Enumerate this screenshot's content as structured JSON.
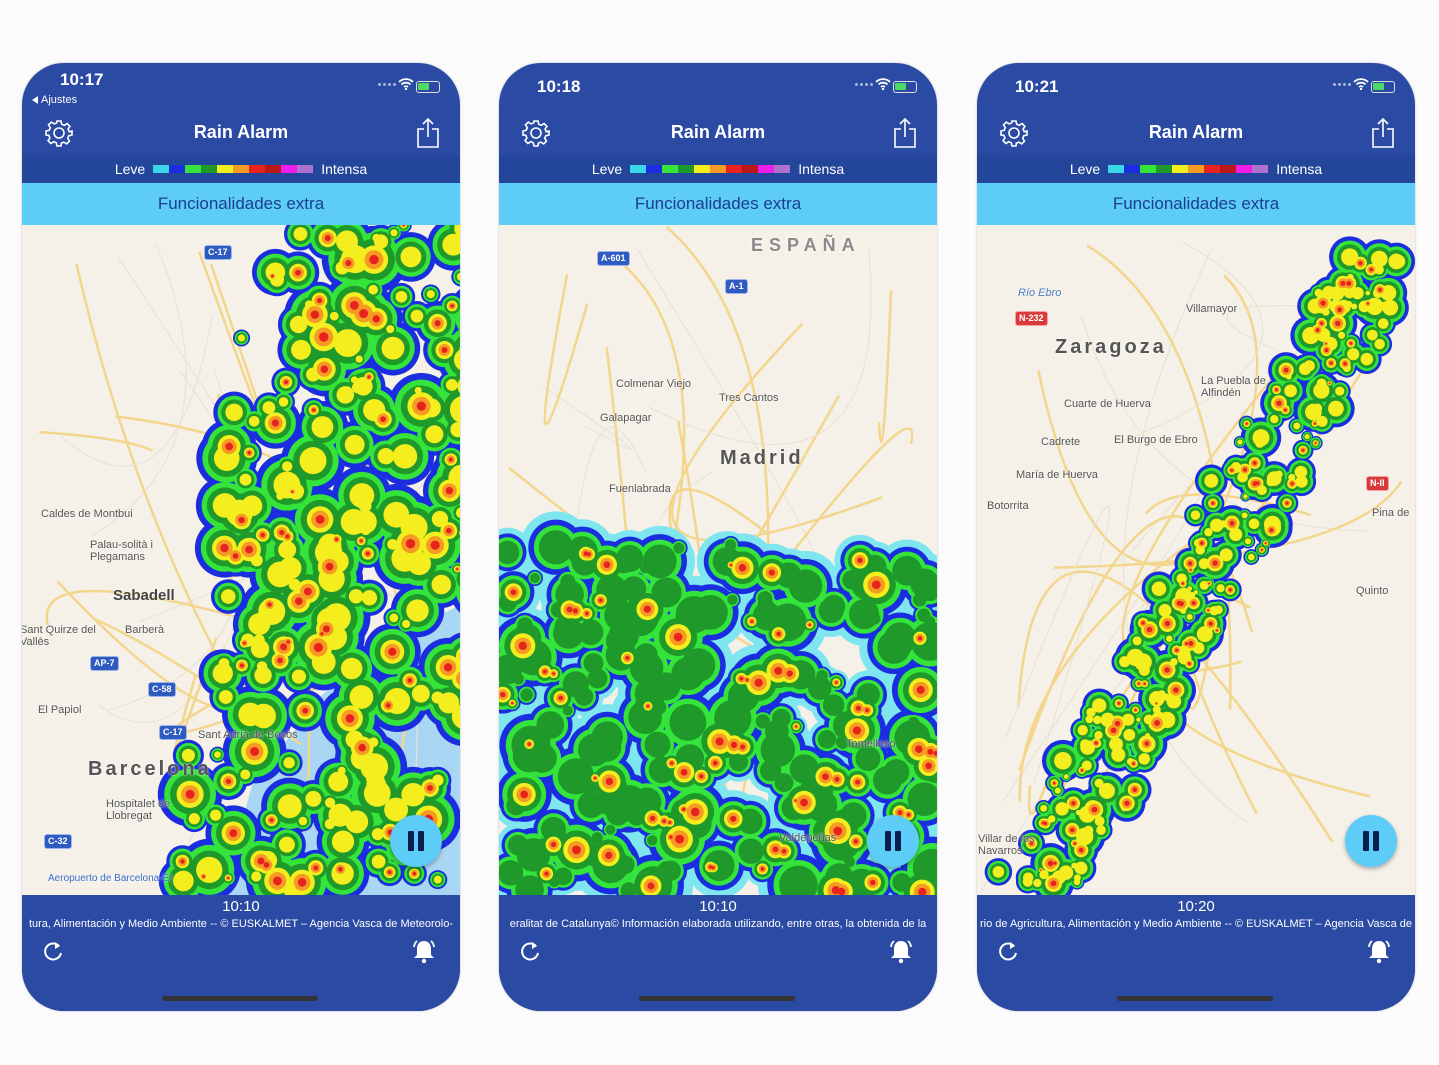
{
  "app": {
    "title": "Rain Alarm",
    "legend_light": "Leve",
    "legend_heavy": "Intensa",
    "banner": "Funcionalidades extra"
  },
  "legend_colors": [
    "#3ad7e8",
    "#1a2ee0",
    "#35e43a",
    "#1f9a2a",
    "#f5ee1f",
    "#f59a23",
    "#e8221e",
    "#b81818",
    "#ee1ee8",
    "#b070d0"
  ],
  "colors": {
    "header": "#2a4aa3",
    "banner": "#5dcdf7",
    "map_bg": "#f5f1e9"
  },
  "phones": [
    {
      "status_time": "10:17",
      "back_label": "Ajustes",
      "radar_time": "10:10",
      "attribution": "tura, Alimentación y Medio Ambiente -- © EUSKALMET – Agencia Vasca de Meteorolo-",
      "labels": [
        "Caldes de Montbui",
        "Palau-solità i Plegamans",
        "Sabadell",
        "Sant Quirze del Vallès",
        "Barberà",
        "El Papiol",
        "Barcelona",
        "Hospitalet de Llobregat",
        "Sant Adrià de Besòs",
        "Aeropuerto de Barcelona-El"
      ],
      "shields": [
        "C-17",
        "AP-7",
        "C-58",
        "C-17",
        "C-32"
      ]
    },
    {
      "status_time": "10:18",
      "radar_time": "10:10",
      "attribution": "eralitat de Catalunya© Información elaborada utilizando, entre otras, la obtenida de la",
      "labels": [
        "ESPAÑA",
        "Colmenar Viejo",
        "Tres Cantos",
        "Galapagar",
        "Madrid",
        "Fuenlabrada",
        "Tomelloso",
        "Valdepeñas"
      ],
      "shields": [
        "A-601",
        "A-1"
      ]
    },
    {
      "status_time": "10:21",
      "radar_time": "10:20",
      "attribution": "rio de Agricultura, Alimentación y Medio Ambiente -- © EUSKALMET – Agencia Vasca de",
      "labels": [
        "Zaragoza",
        "Villamayor",
        "La Puebla de Alfindén",
        "Cuarte de Huerva",
        "Cadrete",
        "El Burgo de Ebro",
        "María de Huerva",
        "Botorrita",
        "Pina de",
        "Quinto",
        "Villar de los Navarros",
        "Río Ebro"
      ],
      "shields": [
        "N-232",
        "N-II"
      ]
    }
  ],
  "icons": {
    "settings": "gear-icon",
    "share": "share-icon",
    "pause": "pause-icon",
    "refresh": "refresh-icon",
    "alarm": "bell-icon"
  }
}
